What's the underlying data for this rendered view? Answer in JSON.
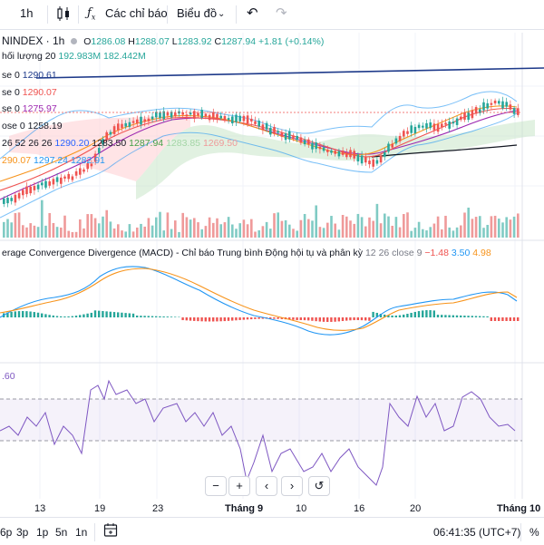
{
  "toolbar": {
    "timeframe": "1h",
    "indicators_label": "Các chỉ báo",
    "chart_type_label": "Biểu đồ",
    "indicators_icon": "fx-icon",
    "candles_icon": "candles-icon",
    "undo_icon": "undo-icon",
    "redo_icon": "redo-icon"
  },
  "legend": {
    "symbol": "NINDEX · 1h",
    "o_label": "O",
    "o_val": "1286.08",
    "h_label": "H",
    "h_val": "1288.07",
    "l_label": "L",
    "l_val": "1283.92",
    "c_label": "C",
    "c_val": "1287.94",
    "change": "+1.81 (+0.14%)",
    "volume_label": "hối lượng 20",
    "volume_val1": "192.983M",
    "volume_val2": "182.442M",
    "ma1_label": "se 0",
    "ma1_val": "1290.61",
    "ma2_label": "se 0",
    "ma2_val": "1290.07",
    "ma3_label": "se 0",
    "ma3_val": "1275.97",
    "ma4_label": "ose 0",
    "ma4_val": "1258.19",
    "ich_label": "26 52 26 26",
    "ich_val1": "1290.20",
    "ich_val2": "1283.50",
    "ich_val3": "1287.94",
    "ich_val4": "1283.85",
    "ich_val5": "1269.50",
    "bb_val1": "290.07",
    "bb_val2": "1297.24",
    "bb_val3": "1282.91"
  },
  "macd": {
    "label": "erage Convergence Divergence (MACD) - Chỉ báo Trung bình Động hội tụ và phân kỳ",
    "params": "12 26 close 9",
    "v1": "−1.48",
    "v2": "3.50",
    "v3": "4.98"
  },
  "rsi": {
    "label": ".60"
  },
  "zoom": {
    "minus": "−",
    "plus": "+",
    "left": "‹",
    "right": "›",
    "reset": "↺"
  },
  "xaxis": {
    "labels": [
      "13",
      "19",
      "23",
      "Tháng 9",
      "10",
      "16",
      "20",
      "Tháng 10"
    ]
  },
  "bottom": {
    "timeframes": [
      "6p",
      "3p",
      "1p",
      "5n",
      "1n"
    ],
    "calendar_icon": "calendar-plus-icon",
    "clock": "06:41:35 (UTC+7)",
    "percent": "%"
  },
  "colors": {
    "up": "#26a69a",
    "down": "#ef5350",
    "blue": "#2962ff",
    "orange": "#f7931a",
    "purple": "#9c27b0",
    "rsi": "#7e57c2",
    "bb": "#2196f3",
    "ichimoku_green": "#81c784"
  }
}
